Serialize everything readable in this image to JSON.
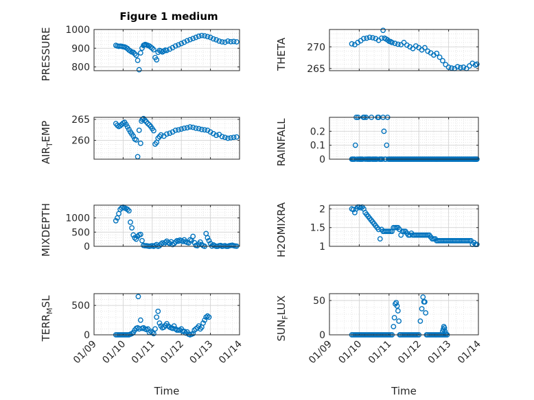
{
  "figure_title": "Figure 1 medium",
  "x_axis_label": "Time",
  "date_ticks": [
    "01/09",
    "01/10",
    "01/11",
    "01/12",
    "01/13",
    "01/14"
  ],
  "colors": {
    "marker": "#0072BD",
    "axis": "#262626",
    "grid": "#DFDFDF"
  },
  "chart_data": [
    {
      "type": "scatter",
      "id": "pressure",
      "title": "Figure 1 medium",
      "ylabel": "PRESSURE",
      "ylim": [
        780,
        1000
      ],
      "yticks": [
        800,
        900,
        1000
      ],
      "xlim": [
        0,
        5
      ],
      "xlabel": "",
      "x": [
        0.75,
        0.8,
        0.85,
        0.9,
        0.95,
        1.0,
        1.05,
        1.1,
        1.15,
        1.2,
        1.25,
        1.3,
        1.35,
        1.4,
        1.45,
        1.5,
        1.55,
        1.6,
        1.65,
        1.7,
        1.73,
        1.76,
        1.8,
        1.85,
        1.9,
        1.95,
        2.0,
        2.05,
        2.1,
        2.15,
        2.2,
        2.25,
        2.3,
        2.35,
        2.4,
        2.45,
        2.5,
        2.6,
        2.7,
        2.8,
        2.9,
        3.0,
        3.1,
        3.2,
        3.3,
        3.4,
        3.5,
        3.6,
        3.7,
        3.8,
        3.9,
        4.0,
        4.1,
        4.2,
        4.3,
        4.4,
        4.5,
        4.6,
        4.7,
        4.8,
        4.9
      ],
      "y": [
        915,
        912,
        910,
        911,
        910,
        908,
        907,
        903,
        898,
        890,
        885,
        880,
        878,
        870,
        862,
        835,
        785,
        875,
        900,
        915,
        918,
        920,
        918,
        915,
        912,
        906,
        900,
        892,
        850,
        838,
        878,
        888,
        885,
        880,
        885,
        890,
        888,
        895,
        903,
        912,
        918,
        925,
        932,
        940,
        946,
        952,
        958,
        964,
        968,
        966,
        962,
        958,
        950,
        945,
        938,
        934,
        932,
        938,
        935,
        936,
        934
      ]
    },
    {
      "type": "scatter",
      "id": "theta",
      "ylabel": "THETA",
      "ylim": [
        264.5,
        274
      ],
      "yticks": [
        265,
        270
      ],
      "xlim": [
        0,
        5
      ],
      "xlabel": "",
      "x": [
        0.75,
        0.85,
        0.95,
        1.05,
        1.15,
        1.25,
        1.35,
        1.45,
        1.55,
        1.65,
        1.75,
        1.8,
        1.85,
        1.9,
        1.95,
        2.0,
        2.05,
        2.1,
        2.2,
        2.3,
        2.4,
        2.5,
        2.6,
        2.7,
        2.8,
        2.9,
        3.0,
        3.1,
        3.2,
        3.3,
        3.4,
        3.5,
        3.6,
        3.7,
        3.8,
        3.9,
        4.0,
        4.1,
        4.2,
        4.3,
        4.4,
        4.5,
        4.6,
        4.7,
        4.8,
        4.9,
        4.95
      ],
      "y": [
        270.7,
        270.5,
        271.0,
        271.4,
        271.9,
        272.0,
        272.2,
        272.1,
        271.9,
        271.5,
        272.0,
        273.8,
        272.0,
        271.8,
        271.6,
        271.3,
        271.2,
        271.0,
        270.8,
        270.6,
        270.5,
        271.0,
        270.4,
        270.0,
        269.6,
        270.2,
        269.8,
        269.3,
        269.8,
        269.0,
        268.6,
        268.1,
        268.5,
        267.6,
        266.8,
        265.9,
        265.3,
        265.1,
        265.0,
        265.4,
        265.2,
        265.3,
        265.0,
        265.6,
        266.2,
        265.8,
        266.0
      ]
    },
    {
      "type": "scatter",
      "id": "air_temp",
      "ylabel": "AIR_TEMP",
      "ylim": [
        255.5,
        265.5
      ],
      "yticks": [
        260,
        265
      ],
      "xlim": [
        0,
        5
      ],
      "xlabel": "",
      "x": [
        0.75,
        0.8,
        0.85,
        0.9,
        0.95,
        1.0,
        1.05,
        1.1,
        1.15,
        1.2,
        1.25,
        1.3,
        1.35,
        1.4,
        1.45,
        1.5,
        1.55,
        1.6,
        1.63,
        1.66,
        1.7,
        1.75,
        1.8,
        1.85,
        1.9,
        1.95,
        2.0,
        2.05,
        2.1,
        2.15,
        2.2,
        2.25,
        2.3,
        2.4,
        2.5,
        2.6,
        2.7,
        2.8,
        2.9,
        3.0,
        3.1,
        3.2,
        3.3,
        3.4,
        3.5,
        3.6,
        3.7,
        3.8,
        3.9,
        4.0,
        4.1,
        4.2,
        4.3,
        4.4,
        4.5,
        4.6,
        4.7,
        4.8,
        4.9
      ],
      "y": [
        264.0,
        263.6,
        263.3,
        263.5,
        263.8,
        264.1,
        264.3,
        263.8,
        263.2,
        262.6,
        262.0,
        261.5,
        261.0,
        260.3,
        260.1,
        256.1,
        262.4,
        259.3,
        264.6,
        265.0,
        265.2,
        264.8,
        264.4,
        264.0,
        263.7,
        263.3,
        262.8,
        262.3,
        259.1,
        259.5,
        260.5,
        260.9,
        261.3,
        261.0,
        261.5,
        261.7,
        262.0,
        262.4,
        262.5,
        262.7,
        262.9,
        263.0,
        263.2,
        263.1,
        262.9,
        262.8,
        262.6,
        262.5,
        262.4,
        262.0,
        261.6,
        261.2,
        261.4,
        260.9,
        260.7,
        260.5,
        260.6,
        260.7,
        260.8
      ]
    },
    {
      "type": "scatter",
      "id": "rainfall",
      "ylabel": "RAINFALL",
      "ylim": [
        0,
        0.3
      ],
      "yticks": [
        0,
        0.1,
        0.2
      ],
      "xlim": [
        0,
        5
      ],
      "xlabel": "",
      "x": [
        0.75,
        0.78,
        0.81,
        0.84,
        0.87,
        0.9,
        0.93,
        0.96,
        0.99,
        1.02,
        1.05,
        1.08,
        1.11,
        1.14,
        1.17,
        1.2,
        1.23,
        1.26,
        1.29,
        1.32,
        1.35,
        1.38,
        1.41,
        1.44,
        1.47,
        1.5,
        1.53,
        1.56,
        1.59,
        1.62,
        1.65,
        1.68,
        1.71,
        1.74,
        1.77,
        1.8,
        1.83,
        1.86,
        1.89,
        1.92,
        1.95,
        1.98,
        2.01,
        2.04,
        2.07,
        2.1,
        2.13,
        2.16,
        2.19,
        2.22,
        2.25,
        2.28,
        2.31,
        2.34,
        2.37,
        2.4,
        2.43,
        2.46,
        2.49,
        2.52,
        2.55,
        2.58,
        2.61,
        2.64,
        2.67,
        2.7,
        2.73,
        2.76,
        2.79,
        2.82,
        2.85,
        2.88,
        2.91,
        2.94,
        2.97,
        3.0,
        3.03,
        3.06,
        3.09,
        3.12,
        3.15,
        3.18,
        3.21,
        3.24,
        3.27,
        3.3,
        3.33,
        3.36,
        3.39,
        3.42,
        3.45,
        3.48,
        3.51,
        3.54,
        3.57,
        3.6,
        3.63,
        3.66,
        3.69,
        3.72,
        3.75,
        3.78,
        3.81,
        3.84,
        3.87,
        3.9,
        3.93,
        3.96,
        3.99,
        4.02,
        4.05,
        4.08,
        4.11,
        4.14,
        4.17,
        4.2,
        4.23,
        4.26,
        4.29,
        4.32,
        4.35,
        4.38,
        4.41,
        4.44,
        4.47,
        4.5,
        4.53,
        4.56,
        4.59,
        4.62,
        4.65,
        4.68,
        4.71,
        4.74,
        4.77,
        4.8,
        4.83,
        4.86,
        4.89,
        4.92,
        4.95,
        4.86,
        4.89,
        4.92,
        4.95
      ],
      "y": [
        0,
        0,
        0,
        0,
        0.1,
        0.3,
        0,
        0.3,
        0,
        0,
        0,
        0,
        0,
        0.3,
        0.3,
        0,
        0.3,
        0,
        0,
        0,
        0,
        0,
        0.3,
        0,
        0,
        0,
        0,
        0,
        0,
        0.3,
        0.3,
        0,
        0,
        0,
        0,
        0.3,
        0.2,
        0,
        0,
        0.1,
        0.3,
        0,
        0,
        0,
        0,
        0,
        0,
        0,
        0,
        0,
        0,
        0,
        0,
        0,
        0,
        0,
        0,
        0,
        0,
        0,
        0,
        0,
        0,
        0,
        0,
        0,
        0,
        0,
        0,
        0,
        0,
        0,
        0,
        0,
        0,
        0,
        0,
        0,
        0,
        0,
        0,
        0,
        0,
        0,
        0,
        0,
        0,
        0,
        0,
        0,
        0,
        0,
        0,
        0,
        0,
        0,
        0,
        0,
        0,
        0,
        0,
        0,
        0,
        0,
        0,
        0,
        0,
        0,
        0,
        0,
        0,
        0,
        0,
        0,
        0,
        0,
        0,
        0,
        0,
        0,
        0,
        0,
        0,
        0,
        0,
        0,
        0,
        0,
        0,
        0,
        0,
        0,
        0,
        0,
        0,
        0,
        0,
        0,
        0,
        0,
        0,
        0,
        0,
        0,
        0
      ]
    },
    {
      "type": "scatter",
      "id": "mixdepth",
      "ylabel": "MIXDEPTH",
      "ylim": [
        0,
        1450
      ],
      "yticks": [
        0,
        500,
        1000
      ],
      "xlim": [
        0,
        5
      ],
      "xlabel": "",
      "x": [
        0.75,
        0.8,
        0.85,
        0.9,
        0.95,
        1.0,
        1.05,
        1.1,
        1.15,
        1.2,
        1.25,
        1.3,
        1.35,
        1.4,
        1.45,
        1.5,
        1.55,
        1.6,
        1.65,
        1.7,
        1.75,
        1.8,
        1.85,
        1.9,
        1.95,
        2.0,
        2.05,
        2.1,
        2.15,
        2.2,
        2.25,
        2.3,
        2.35,
        2.4,
        2.45,
        2.5,
        2.55,
        2.6,
        2.65,
        2.7,
        2.75,
        2.8,
        2.85,
        2.9,
        2.95,
        3.0,
        3.05,
        3.1,
        3.15,
        3.2,
        3.25,
        3.3,
        3.35,
        3.4,
        3.45,
        3.5,
        3.55,
        3.6,
        3.65,
        3.7,
        3.75,
        3.8,
        3.85,
        3.9,
        3.95,
        4.0,
        4.05,
        4.1,
        4.15,
        4.2,
        4.25,
        4.3,
        4.35,
        4.4,
        4.45,
        4.5,
        4.55,
        4.6,
        4.65,
        4.7,
        4.75,
        4.8,
        4.85,
        4.9
      ],
      "y": [
        900,
        1000,
        1150,
        1300,
        1350,
        1380,
        1350,
        1330,
        1300,
        1250,
        850,
        650,
        400,
        300,
        250,
        350,
        400,
        420,
        200,
        30,
        20,
        20,
        10,
        0,
        10,
        20,
        0,
        30,
        60,
        0,
        20,
        80,
        120,
        80,
        140,
        180,
        130,
        100,
        160,
        60,
        100,
        150,
        200,
        180,
        220,
        200,
        170,
        230,
        160,
        140,
        120,
        230,
        200,
        350,
        130,
        30,
        20,
        80,
        150,
        60,
        20,
        0,
        450,
        300,
        200,
        100,
        10,
        50,
        20,
        0,
        0,
        20,
        30,
        0,
        10,
        20,
        0,
        0,
        20,
        30,
        40,
        20,
        10,
        5
      ]
    },
    {
      "type": "scatter",
      "id": "h2omixra",
      "ylabel": "H2OMIXRA",
      "ylim": [
        1,
        2.1
      ],
      "yticks": [
        1,
        1.5,
        2
      ],
      "xlim": [
        0,
        5
      ],
      "xlabel": "",
      "x": [
        0.75,
        0.8,
        0.85,
        0.9,
        0.95,
        1.0,
        1.05,
        1.1,
        1.15,
        1.2,
        1.25,
        1.3,
        1.35,
        1.4,
        1.45,
        1.5,
        1.55,
        1.6,
        1.65,
        1.7,
        1.75,
        1.8,
        1.85,
        1.9,
        1.95,
        2.0,
        2.05,
        2.1,
        2.15,
        2.2,
        2.25,
        2.3,
        2.35,
        2.4,
        2.45,
        2.5,
        2.55,
        2.6,
        2.65,
        2.7,
        2.75,
        2.8,
        2.85,
        2.9,
        2.95,
        3.0,
        3.05,
        3.1,
        3.15,
        3.2,
        3.25,
        3.3,
        3.35,
        3.4,
        3.45,
        3.5,
        3.55,
        3.6,
        3.65,
        3.7,
        3.75,
        3.8,
        3.85,
        3.9,
        3.95,
        4.0,
        4.05,
        4.1,
        4.15,
        4.2,
        4.25,
        4.3,
        4.35,
        4.4,
        4.45,
        4.5,
        4.55,
        4.6,
        4.65,
        4.7,
        4.75,
        4.8,
        4.85,
        4.9,
        4.95
      ],
      "y": [
        2.0,
        1.98,
        1.9,
        2.0,
        2.05,
        2.05,
        2.03,
        2.05,
        2.0,
        1.9,
        1.85,
        1.8,
        1.75,
        1.7,
        1.65,
        1.6,
        1.55,
        1.5,
        1.45,
        1.2,
        1.45,
        1.4,
        1.4,
        1.4,
        1.4,
        1.4,
        1.4,
        1.4,
        1.5,
        1.5,
        1.5,
        1.5,
        1.45,
        1.3,
        1.4,
        1.4,
        1.4,
        1.35,
        1.3,
        1.3,
        1.35,
        1.3,
        1.3,
        1.3,
        1.3,
        1.3,
        1.3,
        1.3,
        1.3,
        1.3,
        1.3,
        1.3,
        1.3,
        1.25,
        1.2,
        1.2,
        1.2,
        1.15,
        1.15,
        1.15,
        1.15,
        1.15,
        1.15,
        1.15,
        1.15,
        1.15,
        1.15,
        1.15,
        1.15,
        1.15,
        1.15,
        1.15,
        1.15,
        1.15,
        1.15,
        1.15,
        1.15,
        1.15,
        1.15,
        1.15,
        1.15,
        1.05,
        1.1,
        1.05,
        1.05
      ]
    },
    {
      "type": "scatter",
      "id": "terr_msl",
      "ylabel": "TERR_MSL",
      "ylim": [
        0,
        700
      ],
      "yticks": [
        0,
        500
      ],
      "xlim": [
        0,
        5
      ],
      "xlabel": "Time",
      "x": [
        0.75,
        0.8,
        0.85,
        0.9,
        0.95,
        1.0,
        1.05,
        1.1,
        1.15,
        1.2,
        1.25,
        1.3,
        1.35,
        1.4,
        1.45,
        1.5,
        1.52,
        1.55,
        1.6,
        1.65,
        1.7,
        1.75,
        1.8,
        1.85,
        1.9,
        1.95,
        2.0,
        2.05,
        2.1,
        2.15,
        2.2,
        2.25,
        2.3,
        2.35,
        2.4,
        2.45,
        2.5,
        2.55,
        2.6,
        2.65,
        2.7,
        2.75,
        2.8,
        2.85,
        2.9,
        2.95,
        3.0,
        3.05,
        3.1,
        3.15,
        3.2,
        3.25,
        3.3,
        3.35,
        3.4,
        3.45,
        3.5,
        3.55,
        3.6,
        3.65,
        3.7,
        3.75,
        3.8,
        3.85,
        3.9,
        3.95
      ],
      "y": [
        0,
        0,
        0,
        0,
        0,
        0,
        0,
        0,
        0,
        0,
        10,
        20,
        40,
        80,
        110,
        120,
        650,
        100,
        250,
        110,
        120,
        100,
        90,
        100,
        40,
        60,
        40,
        20,
        100,
        300,
        400,
        200,
        150,
        120,
        130,
        160,
        190,
        150,
        130,
        120,
        110,
        150,
        100,
        80,
        80,
        80,
        100,
        60,
        60,
        30,
        50,
        10,
        0,
        10,
        20,
        80,
        100,
        120,
        150,
        100,
        130,
        200,
        250,
        300,
        320,
        300
      ]
    },
    {
      "type": "scatter",
      "id": "sun_flux",
      "ylabel": "SUN_FLUX",
      "ylim": [
        0,
        60
      ],
      "yticks": [
        0,
        50
      ],
      "xlim": [
        0,
        5
      ],
      "xlabel": "Time",
      "x": [
        0.75,
        0.8,
        0.85,
        0.9,
        0.95,
        1.0,
        1.05,
        1.1,
        1.15,
        1.2,
        1.25,
        1.3,
        1.35,
        1.4,
        1.45,
        1.5,
        1.55,
        1.6,
        1.65,
        1.7,
        1.75,
        1.8,
        1.85,
        1.9,
        1.95,
        2.0,
        2.05,
        2.1,
        2.15,
        2.18,
        2.21,
        2.24,
        2.27,
        2.3,
        2.33,
        2.36,
        2.4,
        2.45,
        2.5,
        2.55,
        2.6,
        2.65,
        2.7,
        2.75,
        2.8,
        2.85,
        2.9,
        2.95,
        3.0,
        3.05,
        3.1,
        3.14,
        3.17,
        3.2,
        3.23,
        3.26,
        3.3,
        3.35,
        3.4,
        3.45,
        3.5,
        3.55,
        3.6,
        3.65,
        3.7,
        3.75,
        3.8,
        3.85,
        3.9,
        3.95,
        3.8,
        3.82,
        3.84,
        3.86,
        3.88,
        3.9
      ],
      "y": [
        0,
        0,
        0,
        0,
        0,
        0,
        0,
        0,
        0,
        0,
        0,
        0,
        0,
        0,
        0,
        0,
        0,
        0,
        0,
        0,
        0,
        0,
        0,
        0,
        0,
        0,
        0,
        0,
        12,
        25,
        45,
        47,
        42,
        35,
        20,
        0,
        0,
        0,
        0,
        0,
        0,
        0,
        0,
        0,
        0,
        0,
        0,
        0,
        0,
        20,
        38,
        55,
        48,
        48,
        32,
        0,
        0,
        0,
        0,
        0,
        0,
        0,
        0,
        0,
        0,
        0,
        0,
        0,
        0,
        0,
        5,
        8,
        12,
        10,
        5,
        2
      ]
    }
  ]
}
